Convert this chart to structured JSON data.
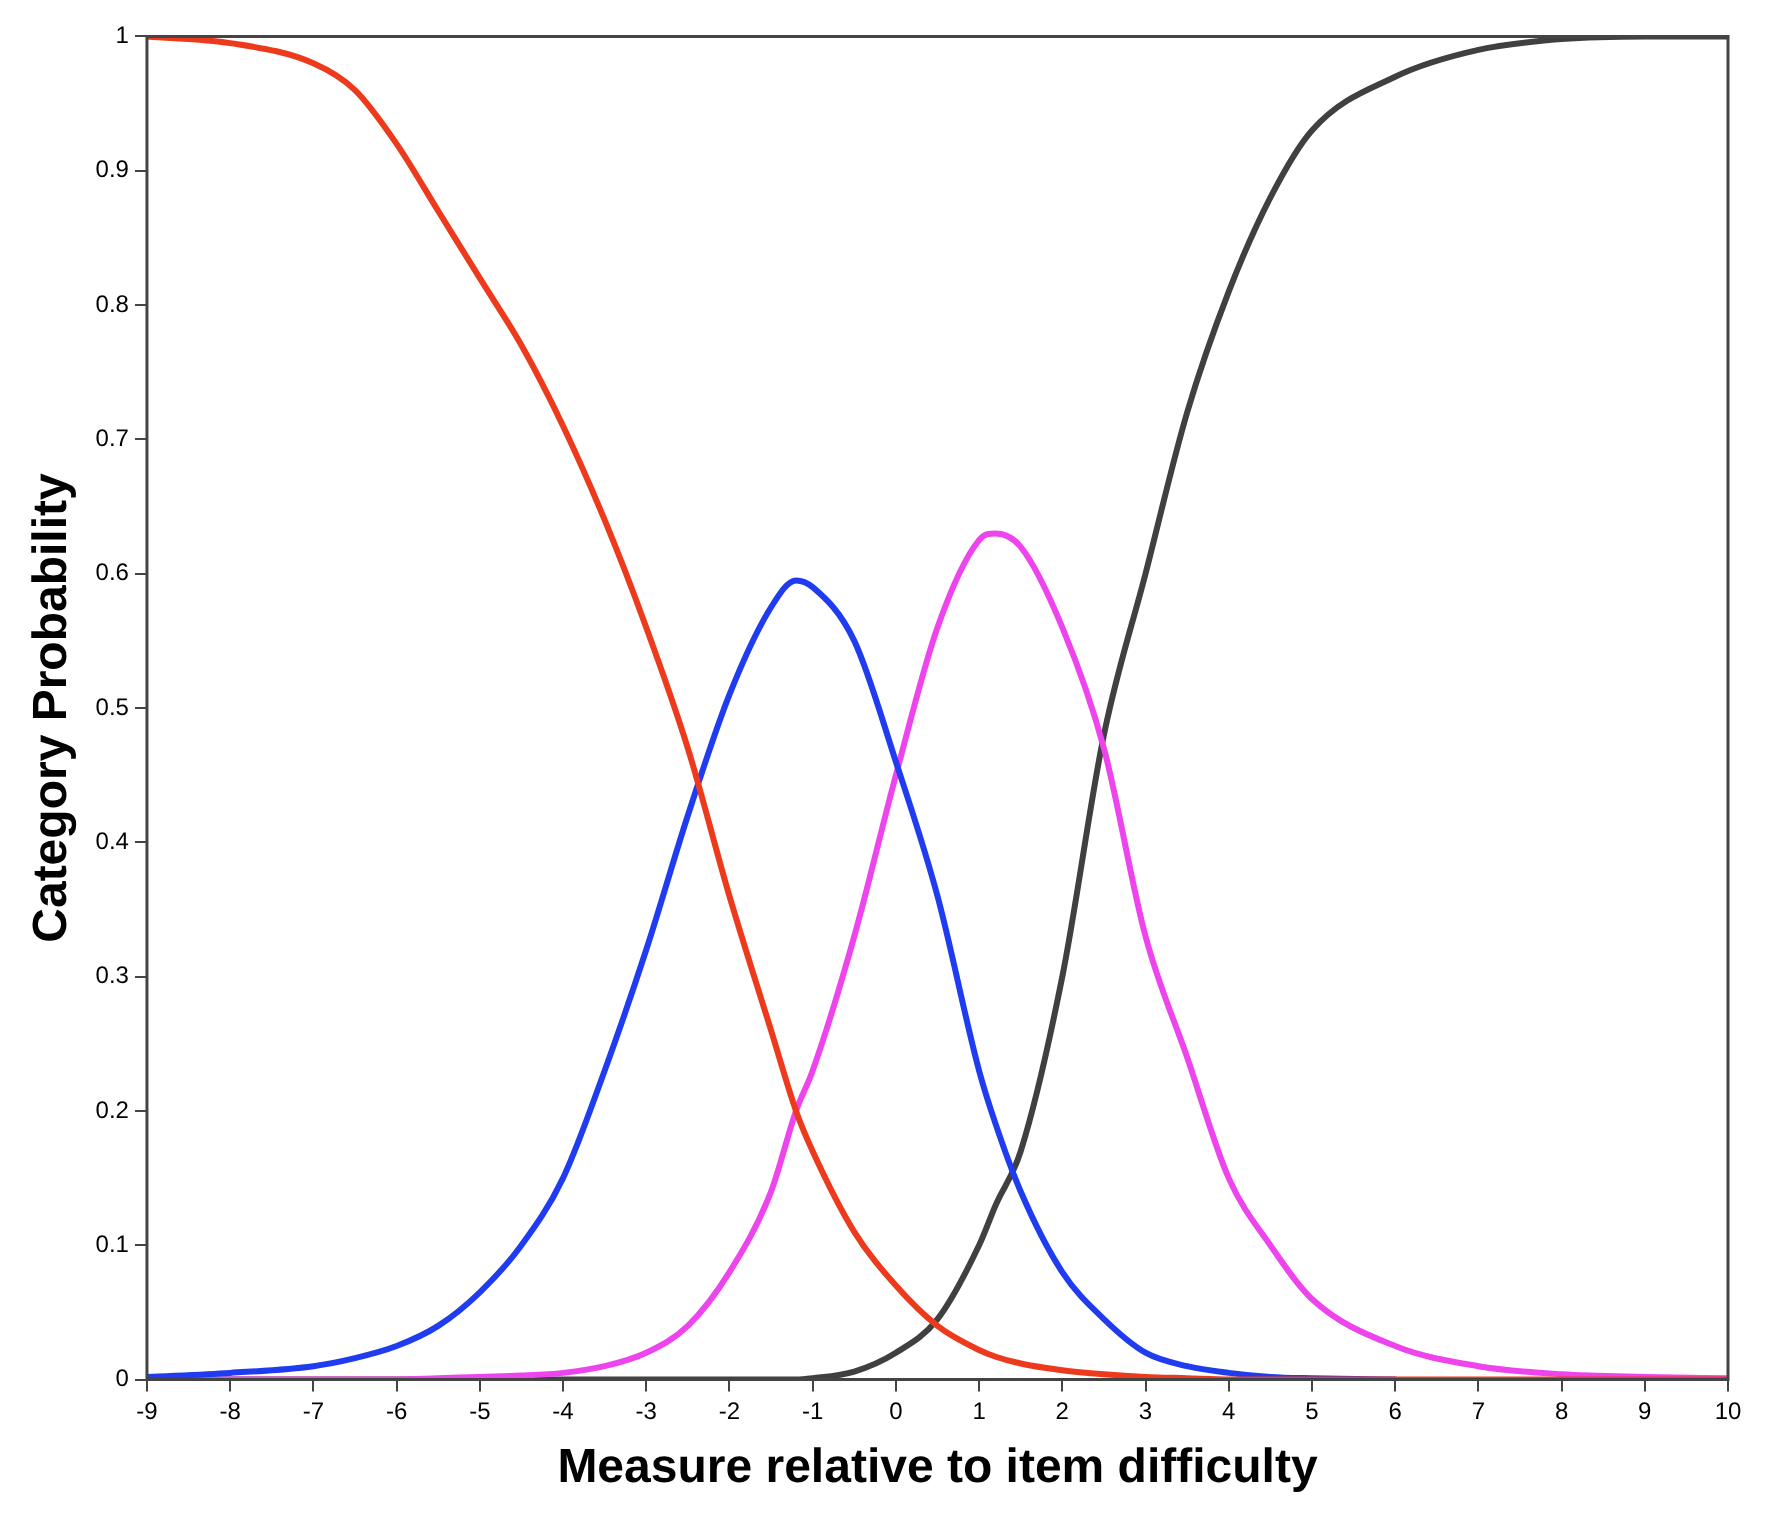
{
  "chart_data": {
    "type": "line",
    "xlabel": "Measure relative to item difficulty",
    "ylabel": "Category Probability",
    "xlim": [
      -9,
      10
    ],
    "xticks": [
      -9,
      -8,
      -7,
      -6,
      -5,
      -4,
      -3,
      -2,
      -1,
      0,
      1,
      2,
      3,
      4,
      5,
      6,
      7,
      8,
      9,
      10
    ],
    "ylim": [
      0,
      1
    ],
    "yticks": [
      0,
      0.1,
      0.2,
      0.3,
      0.4,
      0.5,
      0.6,
      0.7,
      0.8,
      0.9,
      1
    ],
    "grid": false,
    "legend": false,
    "x": [
      -9,
      -8,
      -7,
      -6.5,
      -6,
      -5.5,
      -5,
      -4.5,
      -4,
      -3.5,
      -3,
      -2.5,
      -2,
      -1.5,
      -1.2,
      -1,
      -0.5,
      0,
      0.5,
      1,
      1.2,
      1.5,
      2,
      2.5,
      3,
      3.5,
      4,
      4.5,
      5,
      6,
      7,
      8,
      9,
      10
    ],
    "series": [
      {
        "color": "#ee3a1c",
        "values": [
          1,
          0.995,
          0.98,
          0.96,
          0.92,
          0.87,
          0.82,
          0.77,
          0.71,
          0.64,
          0.56,
          0.47,
          0.36,
          0.26,
          0.2,
          0.17,
          0.11,
          0.07,
          0.04,
          0.022,
          0.017,
          0.012,
          0.007,
          0.004,
          0.002,
          0.001,
          0,
          0,
          0,
          0,
          0,
          0,
          0,
          0
        ]
      },
      {
        "color": "#1f3cf0",
        "values": [
          0.002,
          0.005,
          0.01,
          0.016,
          0.025,
          0.04,
          0.065,
          0.1,
          0.15,
          0.23,
          0.32,
          0.42,
          0.51,
          0.575,
          0.595,
          0.59,
          0.55,
          0.46,
          0.36,
          0.23,
          0.19,
          0.14,
          0.08,
          0.045,
          0.02,
          0.01,
          0.005,
          0.002,
          0.001,
          0,
          null,
          null,
          null,
          null
        ]
      },
      {
        "color": "#ee44ee",
        "values": [
          0,
          0,
          0,
          0,
          0,
          0.001,
          0.002,
          0.003,
          0.005,
          0.01,
          0.02,
          0.04,
          0.08,
          0.14,
          0.2,
          0.23,
          0.33,
          0.45,
          0.56,
          0.625,
          0.63,
          0.62,
          0.56,
          0.47,
          0.33,
          0.24,
          0.15,
          0.1,
          0.06,
          0.025,
          0.01,
          0.004,
          0.002,
          0.001
        ]
      },
      {
        "color": "#404040",
        "values": [
          0,
          0,
          0,
          0,
          0,
          0,
          0,
          0,
          0,
          0,
          0,
          0,
          0,
          0,
          0,
          0.001,
          0.006,
          0.02,
          0.045,
          0.1,
          0.13,
          0.17,
          0.3,
          0.48,
          0.6,
          0.72,
          0.81,
          0.88,
          0.93,
          0.97,
          0.99,
          0.998,
          1,
          1
        ]
      }
    ]
  }
}
